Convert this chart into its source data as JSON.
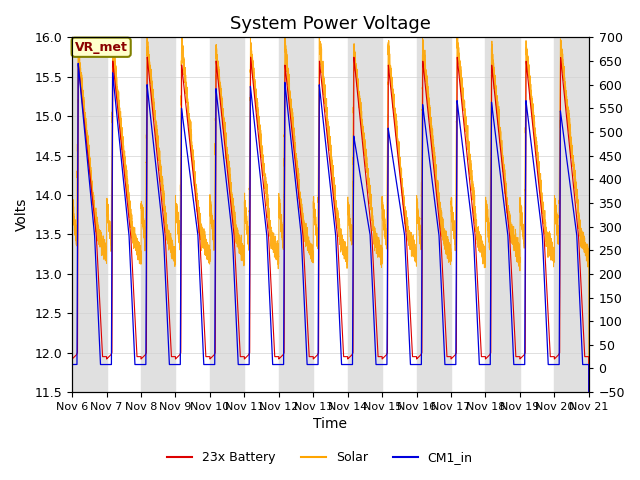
{
  "title": "System Power Voltage",
  "xlabel": "Time",
  "ylabel": "Volts",
  "xlim_days": [
    0,
    15
  ],
  "ylim_left": [
    11.5,
    16.0
  ],
  "ylim_right": [
    -50,
    700
  ],
  "yticks_left": [
    11.5,
    12.0,
    12.5,
    13.0,
    13.5,
    14.0,
    14.5,
    15.0,
    15.5,
    16.0
  ],
  "yticks_right": [
    -50,
    0,
    50,
    100,
    150,
    200,
    250,
    300,
    350,
    400,
    450,
    500,
    550,
    600,
    650,
    700
  ],
  "xtick_labels": [
    "Nov 6",
    "Nov 7",
    "Nov 8",
    "Nov 9",
    "Nov 10",
    "Nov 11",
    "Nov 12",
    "Nov 13",
    "Nov 14",
    "Nov 15",
    "Nov 16",
    "Nov 17",
    "Nov 18",
    "Nov 19",
    "Nov 20",
    "Nov 21"
  ],
  "annotation_text": "VR_met",
  "colors": {
    "battery": "#dd0000",
    "solar": "#ffa500",
    "cm1": "#0000dd",
    "background_stripe": "#e0e0e0"
  },
  "legend_labels": [
    "23x Battery",
    "Solar",
    "CM1_in"
  ],
  "title_fontsize": 13,
  "axis_fontsize": 10,
  "tick_fontsize": 9
}
